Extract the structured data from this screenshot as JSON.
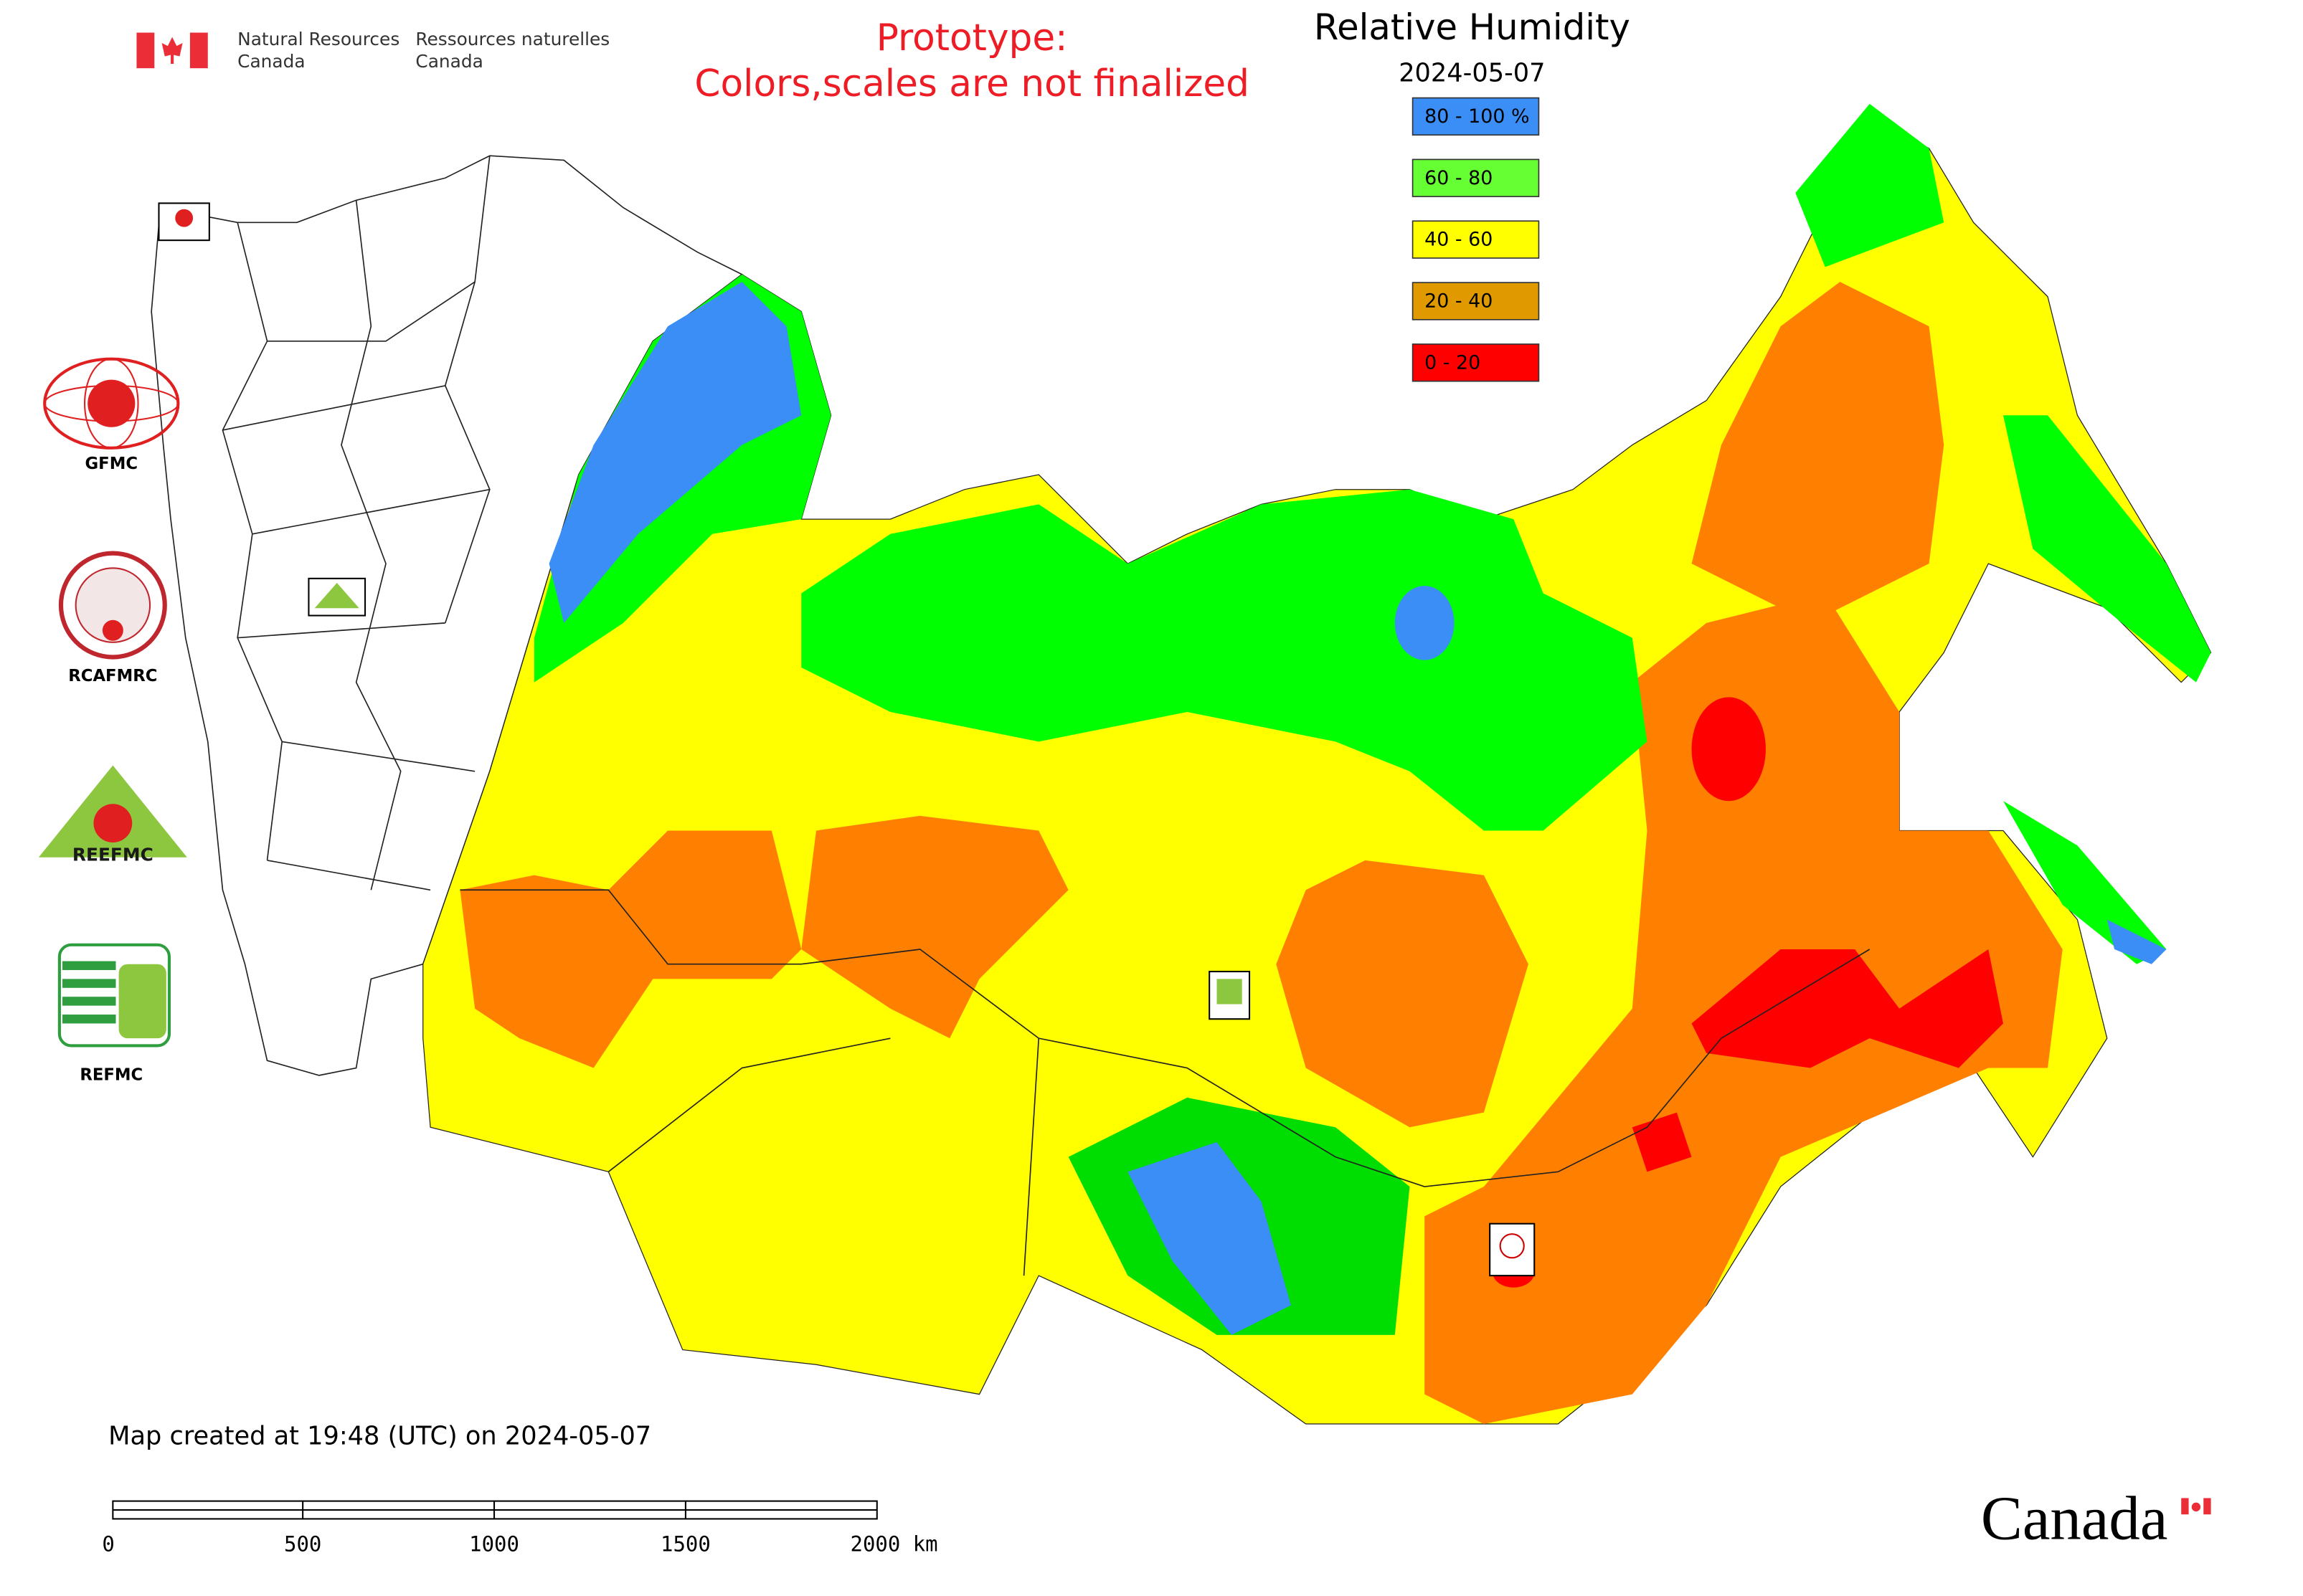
{
  "agency": {
    "en_line1": "Natural Resources",
    "en_line2": "Canada",
    "fr_line1": "Ressources naturelles",
    "fr_line2": "Canada"
  },
  "notice": {
    "line1": "Prototype:",
    "line2": "Colors,scales are not finalized"
  },
  "title": "Relative Humidity",
  "date": "2024-05-07",
  "legend": [
    {
      "label": "80 - 100 %",
      "color": "#3a8ef6"
    },
    {
      "label": "60 - 80",
      "color": "#66ff33"
    },
    {
      "label": "40 - 60",
      "color": "#ffff00"
    },
    {
      "label": "20 - 40",
      "color": "#e09a00"
    },
    {
      "label": "0 - 20",
      "color": "#ff0000"
    }
  ],
  "logos": [
    "GFMC",
    "RCAFMRC",
    "REEFMC",
    "REFMC"
  ],
  "footer": "Map created at 19:48 (UTC) on 2024-05-07",
  "scale_bar": {
    "labels": [
      "0",
      "500",
      "1000",
      "1500",
      "2000 km"
    ]
  },
  "wordmark": "Canada"
}
